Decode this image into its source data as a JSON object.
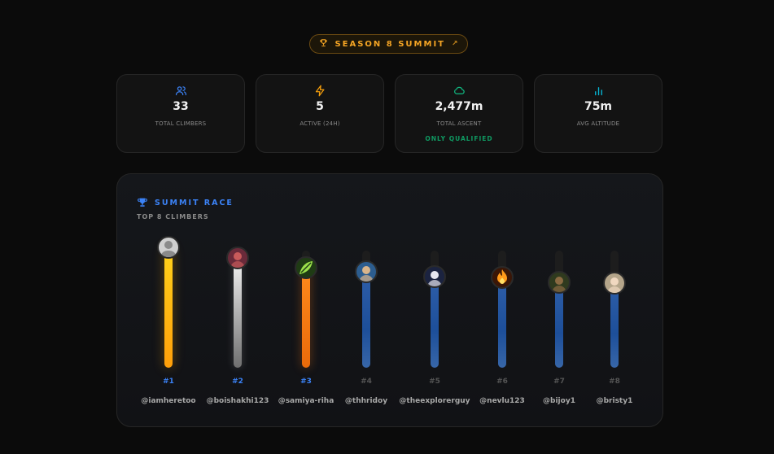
{
  "season": {
    "label": "SEASON 8 SUMMIT",
    "icon": "trophy-icon",
    "arrow": "↗"
  },
  "stats": [
    {
      "value": "33",
      "label": "TOTAL CLIMBERS",
      "icon": "users-icon",
      "color": "#3b82f6"
    },
    {
      "value": "5",
      "label": "ACTIVE (24H)",
      "icon": "bolt-icon",
      "color": "#f59e0b"
    },
    {
      "value": "2,477m",
      "label": "TOTAL ASCENT",
      "note": "ONLY QUALIFIED",
      "icon": "cloud-icon",
      "color": "#10b981"
    },
    {
      "value": "75m",
      "label": "AVG ALTITUDE",
      "icon": "bar-chart-icon",
      "color": "#06b6d4"
    }
  ],
  "race": {
    "title": "SUMMIT RACE",
    "subtitle": "TOP 8 CLIMBERS",
    "climbers": [
      {
        "rank": "#1",
        "handle": "@iamheretoo",
        "level": 1.0,
        "tier": "gold"
      },
      {
        "rank": "#2",
        "handle": "@boishakhi123",
        "level": 0.91,
        "tier": "silver"
      },
      {
        "rank": "#3",
        "handle": "@samiya-riha",
        "level": 0.83,
        "tier": "bronze"
      },
      {
        "rank": "#4",
        "handle": "@thhridoy",
        "level": 0.8,
        "tier": "blue"
      },
      {
        "rank": "#5",
        "handle": "@theexplorerguy",
        "level": 0.76,
        "tier": "blue"
      },
      {
        "rank": "#6",
        "handle": "@nevlu123",
        "level": 0.75,
        "tier": "blue"
      },
      {
        "rank": "#7",
        "handle": "@bijoy1",
        "level": 0.71,
        "tier": "blue"
      },
      {
        "rank": "#8",
        "handle": "@bristy1",
        "level": 0.7,
        "tier": "blue"
      }
    ]
  }
}
